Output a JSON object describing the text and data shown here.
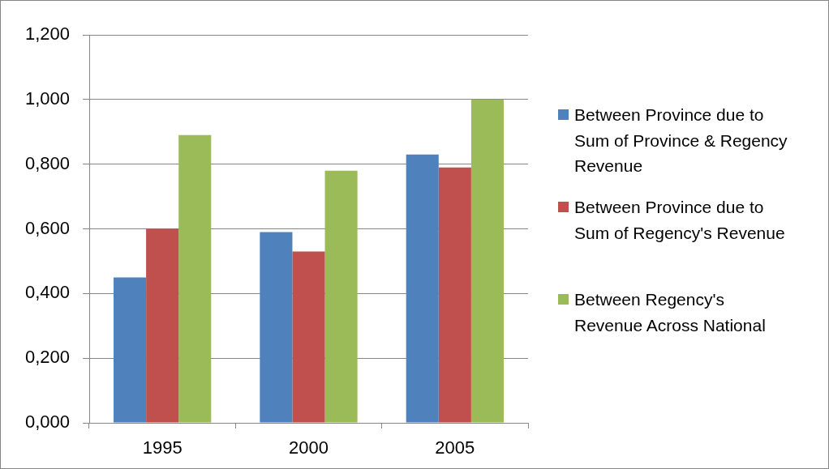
{
  "chart_data": {
    "type": "bar",
    "categories": [
      "1995",
      "2000",
      "2005"
    ],
    "series": [
      {
        "name": "Between Province due to Sum of Province & Regency Revenue",
        "color": "#4f81bd",
        "values": [
          0.45,
          0.59,
          0.83
        ]
      },
      {
        "name": "Between Province due to Sum of Regency's Revenue",
        "color": "#c0504d",
        "values": [
          0.6,
          0.53,
          0.79
        ]
      },
      {
        "name": "Between Regency's Revenue Across National",
        "color": "#9bbb59",
        "values": [
          0.89,
          0.78,
          1.0
        ]
      }
    ],
    "ylim": [
      0,
      1.2
    ],
    "yticks": [
      {
        "value": 0,
        "label": "0,000"
      },
      {
        "value": 0.2,
        "label": "0,200"
      },
      {
        "value": 0.4,
        "label": "0,400"
      },
      {
        "value": 0.6,
        "label": "0,600"
      },
      {
        "value": 0.8,
        "label": "0,800"
      },
      {
        "value": 1,
        "label": "1,000"
      },
      {
        "value": 1.2,
        "label": "1,200"
      }
    ],
    "grid": "y",
    "legend": "right"
  }
}
